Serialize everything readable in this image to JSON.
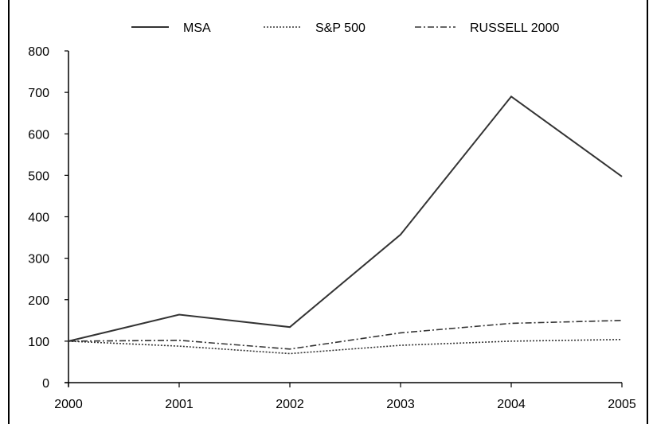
{
  "chart_data": {
    "type": "line",
    "title": "",
    "xlabel": "",
    "ylabel": "",
    "x": [
      "2000",
      "2001",
      "2002",
      "2003",
      "2004",
      "2005"
    ],
    "ylim": [
      0,
      800
    ],
    "yticks": [
      "0",
      "100",
      "200",
      "300",
      "400",
      "500",
      "600",
      "700",
      "800"
    ],
    "grid": false,
    "legend_position": "top-center",
    "series": [
      {
        "name": "MSA",
        "values": [
          100,
          164,
          134,
          357,
          690,
          497
        ],
        "dash": "solid",
        "color": "#333333"
      },
      {
        "name": "S&P 500",
        "values": [
          100,
          88,
          70,
          90,
          100,
          104
        ],
        "dash": "dotted",
        "color": "#333333"
      },
      {
        "name": "RUSSELL 2000",
        "values": [
          100,
          102,
          81,
          120,
          143,
          150
        ],
        "dash": "dashdot",
        "color": "#333333"
      }
    ]
  }
}
